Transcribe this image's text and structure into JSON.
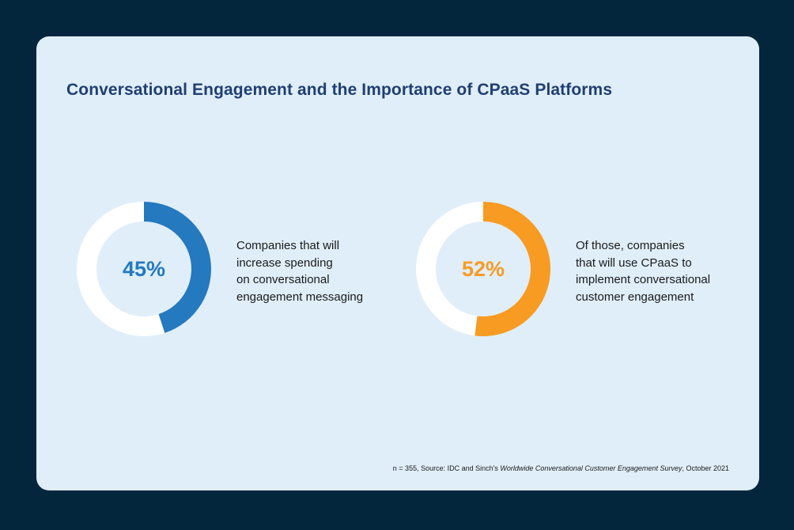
{
  "title": "Conversational Engagement and the Importance of CPaaS Platforms",
  "chart_data": [
    {
      "type": "pie",
      "style": "donut",
      "values": [
        45,
        55
      ],
      "label": "45%",
      "description": "Companies that will\nincrease spending\non conversational\nengagement messaging",
      "colors": [
        "#2479bf",
        "#ffffff"
      ]
    },
    {
      "type": "pie",
      "style": "donut",
      "values": [
        52,
        48
      ],
      "label": "52%",
      "description": "Of those, companies\nthat will use CPaaS to\nimplement conversational\ncustomer engagement",
      "colors": [
        "#f89b23",
        "#ffffff"
      ]
    }
  ],
  "footnote": {
    "prefix": "n = 355, Source: IDC and Sinch's ",
    "italic": "Worldwide Conversational Customer Engagement Survey",
    "suffix": ", October 2021"
  }
}
